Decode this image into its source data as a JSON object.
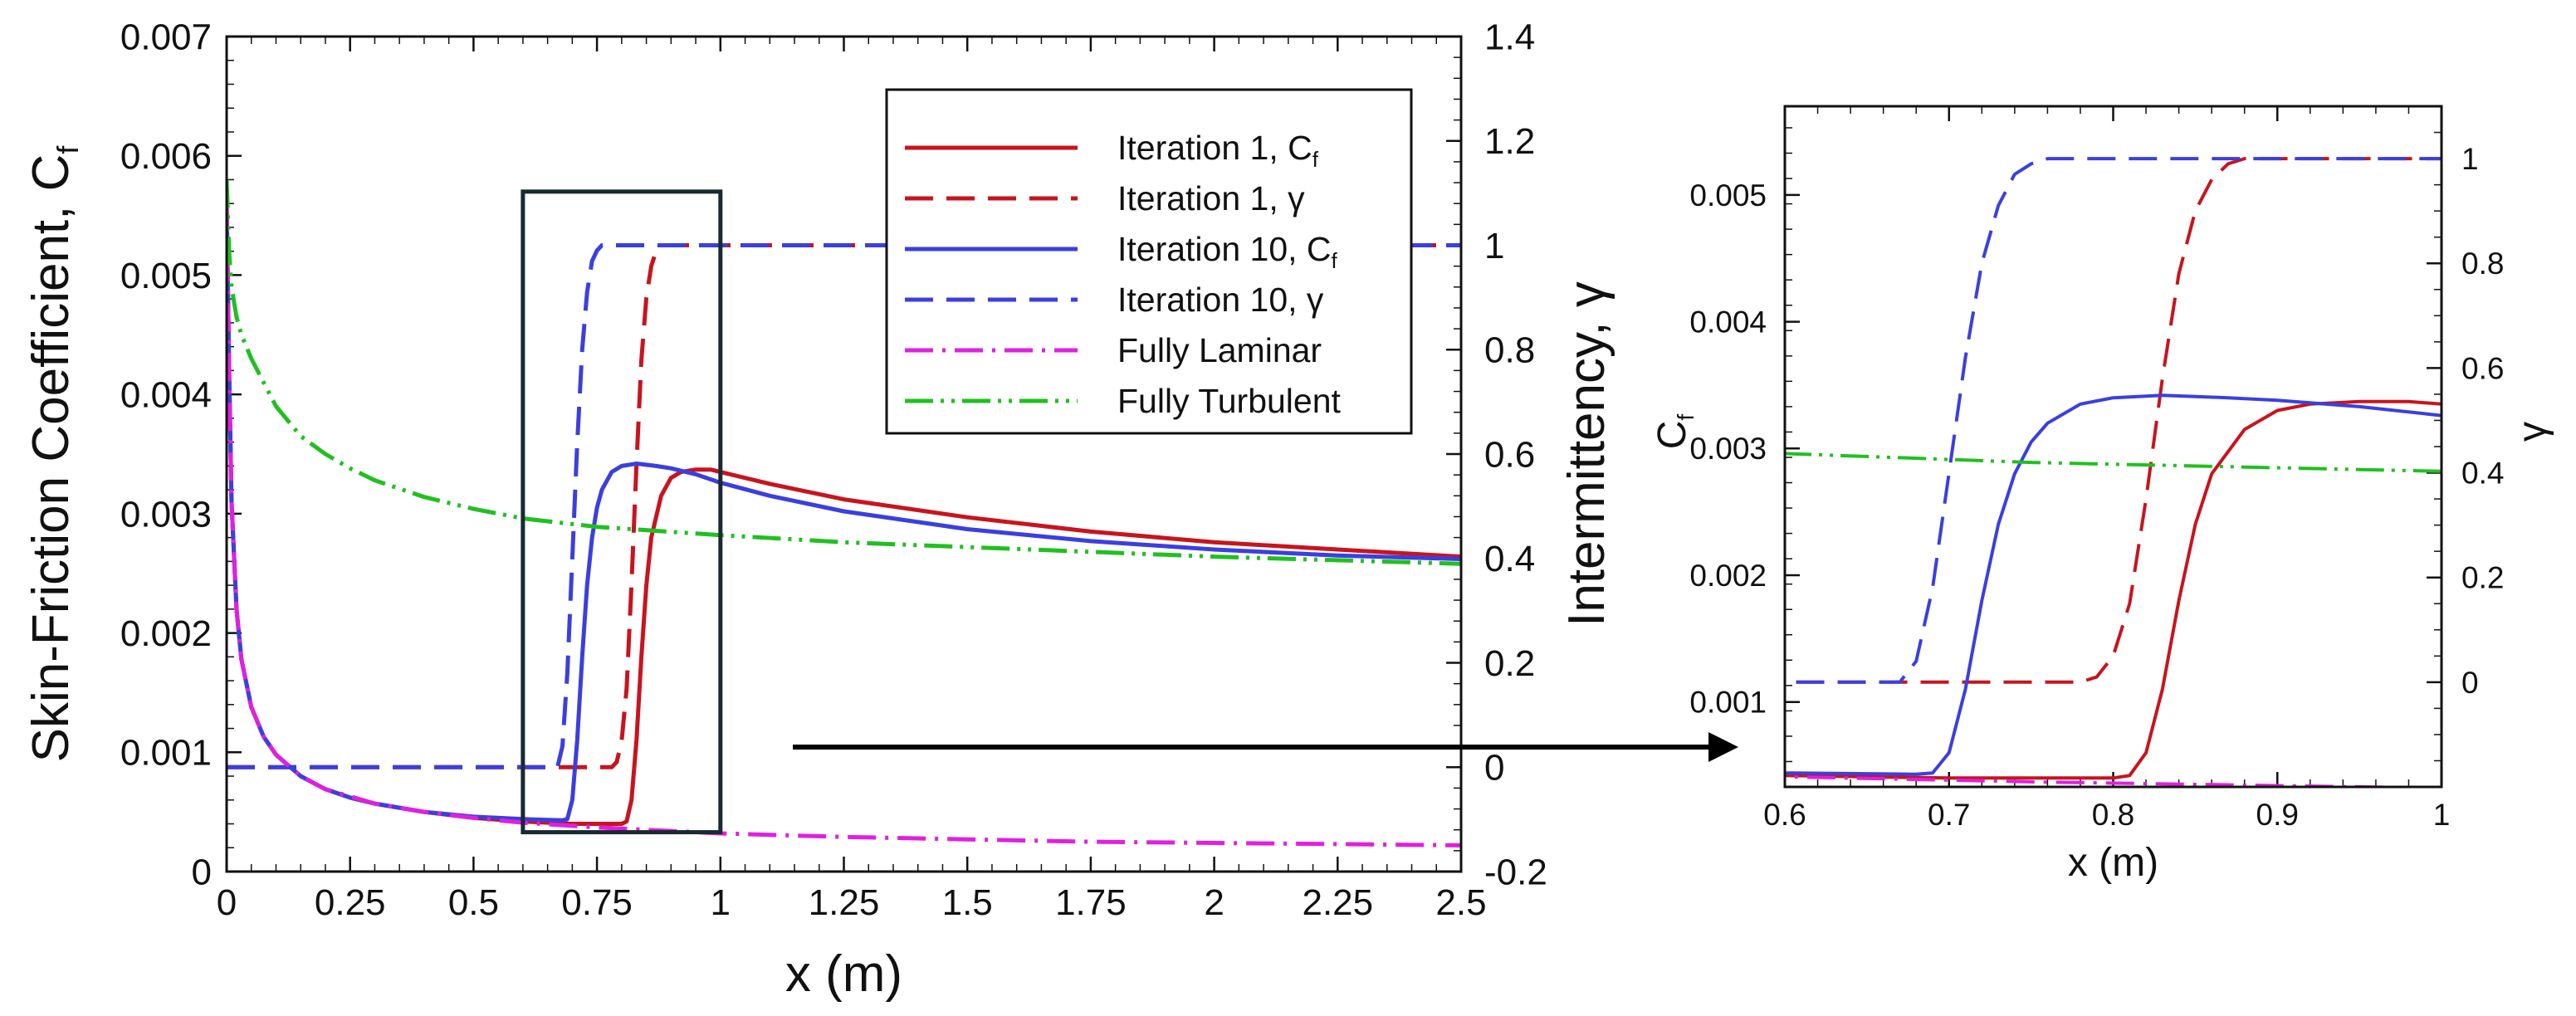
{
  "chart_data": [
    {
      "id": "main",
      "type": "line",
      "xlabel": "x (m)",
      "ylabel": "Skin-Friction Coefficient, C",
      "ylabel_sub": "f",
      "y2label": "Intermittency, γ",
      "xlim": [
        0,
        2.5
      ],
      "ylim": [
        0,
        0.007
      ],
      "y2lim": [
        -0.2,
        1.4
      ],
      "xticks": [
        0,
        0.25,
        0.5,
        0.75,
        1,
        1.25,
        1.5,
        1.75,
        2,
        2.25,
        2.5
      ],
      "xtick_labels": [
        "0",
        "0.25",
        "0.5",
        "0.75",
        "1",
        "1.25",
        "1.5",
        "1.75",
        "2",
        "2.25",
        "2.5"
      ],
      "yticks": [
        0,
        0.001,
        0.002,
        0.003,
        0.004,
        0.005,
        0.006,
        0.007
      ],
      "ytick_labels": [
        "0",
        "0.001",
        "0.002",
        "0.003",
        "0.004",
        "0.005",
        "0.006",
        "0.007"
      ],
      "y2ticks": [
        -0.2,
        0,
        0.2,
        0.4,
        0.6,
        0.8,
        1,
        1.2,
        1.4
      ],
      "y2tick_labels": [
        "-0.2",
        "0",
        "0.2",
        "0.4",
        "0.6",
        "0.8",
        "1",
        "1.2",
        "1.4"
      ],
      "legend_position": "top-right",
      "zoom_box": {
        "x": [
          0.6,
          1.0
        ],
        "y": [
          0.00033,
          0.0057
        ]
      },
      "series": [
        {
          "name": "Iteration 1, C",
          "sub": "f",
          "axis": "left",
          "color": "#c8141e",
          "style": "solid",
          "x": [
            0,
            0.005,
            0.01,
            0.02,
            0.03,
            0.05,
            0.075,
            0.1,
            0.15,
            0.2,
            0.25,
            0.3,
            0.4,
            0.5,
            0.6,
            0.7,
            0.75,
            0.78,
            0.8,
            0.81,
            0.82,
            0.83,
            0.84,
            0.85,
            0.86,
            0.88,
            0.9,
            0.92,
            0.95,
            0.98,
            1.0,
            1.1,
            1.25,
            1.5,
            1.75,
            2.0,
            2.25,
            2.5
          ],
          "y": [
            0.0056,
            0.0042,
            0.0031,
            0.0022,
            0.00178,
            0.00138,
            0.00113,
            0.00098,
            0.0008,
            0.00069,
            0.00062,
            0.00057,
            0.0005,
            0.00045,
            0.00042,
            0.0004,
            0.0004,
            0.0004,
            0.0004,
            0.00042,
            0.0006,
            0.0011,
            0.0018,
            0.0024,
            0.0028,
            0.00315,
            0.0033,
            0.00335,
            0.00337,
            0.00337,
            0.00335,
            0.00325,
            0.00312,
            0.00297,
            0.00285,
            0.00276,
            0.0027,
            0.00264
          ]
        },
        {
          "name": "Iteration 1, γ",
          "axis": "right",
          "color": "#c8141e",
          "style": "dashed",
          "x": [
            0,
            0.78,
            0.79,
            0.8,
            0.81,
            0.82,
            0.83,
            0.84,
            0.85,
            0.86,
            0.87,
            0.88,
            0.9,
            1.0,
            2.5
          ],
          "y": [
            0,
            0,
            0.01,
            0.05,
            0.15,
            0.35,
            0.58,
            0.78,
            0.9,
            0.96,
            0.99,
            1.0,
            1.0,
            1.0,
            1.0
          ]
        },
        {
          "name": "Iteration 10, C",
          "sub": "f",
          "axis": "left",
          "color": "#3b3fe0",
          "style": "solid",
          "x": [
            0,
            0.005,
            0.01,
            0.02,
            0.03,
            0.05,
            0.075,
            0.1,
            0.15,
            0.2,
            0.25,
            0.3,
            0.4,
            0.5,
            0.6,
            0.68,
            0.69,
            0.7,
            0.71,
            0.72,
            0.73,
            0.74,
            0.75,
            0.76,
            0.78,
            0.8,
            0.83,
            0.87,
            0.9,
            0.95,
            1.0,
            1.1,
            1.25,
            1.5,
            1.75,
            2.0,
            2.25,
            2.5
          ],
          "y": [
            0.0056,
            0.0042,
            0.0031,
            0.0022,
            0.00178,
            0.00138,
            0.00113,
            0.00098,
            0.0008,
            0.00069,
            0.00062,
            0.00057,
            0.0005,
            0.00046,
            0.00044,
            0.00043,
            0.00044,
            0.0006,
            0.0011,
            0.0018,
            0.0024,
            0.0028,
            0.00305,
            0.0032,
            0.00335,
            0.0034,
            0.00342,
            0.0034,
            0.00338,
            0.00333,
            0.00326,
            0.00315,
            0.00302,
            0.00287,
            0.00277,
            0.0027,
            0.00265,
            0.00262
          ]
        },
        {
          "name": "Iteration 10, γ",
          "axis": "right",
          "color": "#3b3fe0",
          "style": "dashed",
          "x": [
            0,
            0.67,
            0.68,
            0.69,
            0.7,
            0.71,
            0.72,
            0.73,
            0.74,
            0.75,
            0.76,
            0.77,
            0.8,
            1.0,
            2.5
          ],
          "y": [
            0,
            0,
            0.04,
            0.18,
            0.4,
            0.62,
            0.8,
            0.91,
            0.97,
            0.99,
            1.0,
            1.0,
            1.0,
            1.0,
            1.0
          ]
        },
        {
          "name": "Fully Laminar",
          "axis": "left",
          "color": "#e020e0",
          "style": "dash-dot",
          "x": [
            0,
            0.005,
            0.01,
            0.02,
            0.03,
            0.05,
            0.075,
            0.1,
            0.15,
            0.2,
            0.3,
            0.4,
            0.5,
            0.6,
            0.75,
            1.0,
            1.25,
            1.5,
            1.75,
            2.0,
            2.25,
            2.5
          ],
          "y": [
            0.0056,
            0.0042,
            0.0031,
            0.0022,
            0.00178,
            0.00138,
            0.00113,
            0.00098,
            0.0008,
            0.00069,
            0.00057,
            0.0005,
            0.00045,
            0.00041,
            0.00037,
            0.00032,
            0.00029,
            0.00027,
            0.00025,
            0.00024,
            0.00023,
            0.00022
          ]
        },
        {
          "name": "Fully Turbulent",
          "axis": "left",
          "color": "#20c020",
          "style": "dash-dot-dot",
          "x": [
            0,
            0.005,
            0.01,
            0.02,
            0.03,
            0.05,
            0.075,
            0.1,
            0.15,
            0.2,
            0.25,
            0.3,
            0.4,
            0.5,
            0.6,
            0.75,
            1.0,
            1.25,
            1.5,
            1.75,
            2.0,
            2.25,
            2.5
          ],
          "y": [
            0.0058,
            0.0052,
            0.0049,
            0.00465,
            0.0045,
            0.0043,
            0.0041,
            0.0039,
            0.00365,
            0.0035,
            0.00338,
            0.00328,
            0.00314,
            0.00304,
            0.00296,
            0.00289,
            0.00282,
            0.00276,
            0.00272,
            0.00268,
            0.00264,
            0.00261,
            0.00258
          ]
        }
      ]
    },
    {
      "id": "zoom",
      "type": "line",
      "xlabel": "x (m)",
      "ylabel": "C",
      "ylabel_sub": "f",
      "y2label": "γ",
      "xlim": [
        0.6,
        1.0
      ],
      "ylim": [
        0.00033,
        0.0057
      ],
      "y2lim": [
        -0.2,
        1.1
      ],
      "xticks": [
        0.6,
        0.7,
        0.8,
        0.9,
        1
      ],
      "xtick_labels": [
        "0.6",
        "0.7",
        "0.8",
        "0.9",
        "1"
      ],
      "yticks": [
        0.001,
        0.002,
        0.003,
        0.004,
        0.005
      ],
      "ytick_labels": [
        "0.001",
        "0.002",
        "0.003",
        "0.004",
        "0.005"
      ],
      "y2ticks": [
        0,
        0.2,
        0.4,
        0.6,
        0.8,
        1
      ],
      "y2tick_labels": [
        "0",
        "0.2",
        "0.4",
        "0.6",
        "0.8",
        "1"
      ],
      "series_from_main": true
    }
  ]
}
